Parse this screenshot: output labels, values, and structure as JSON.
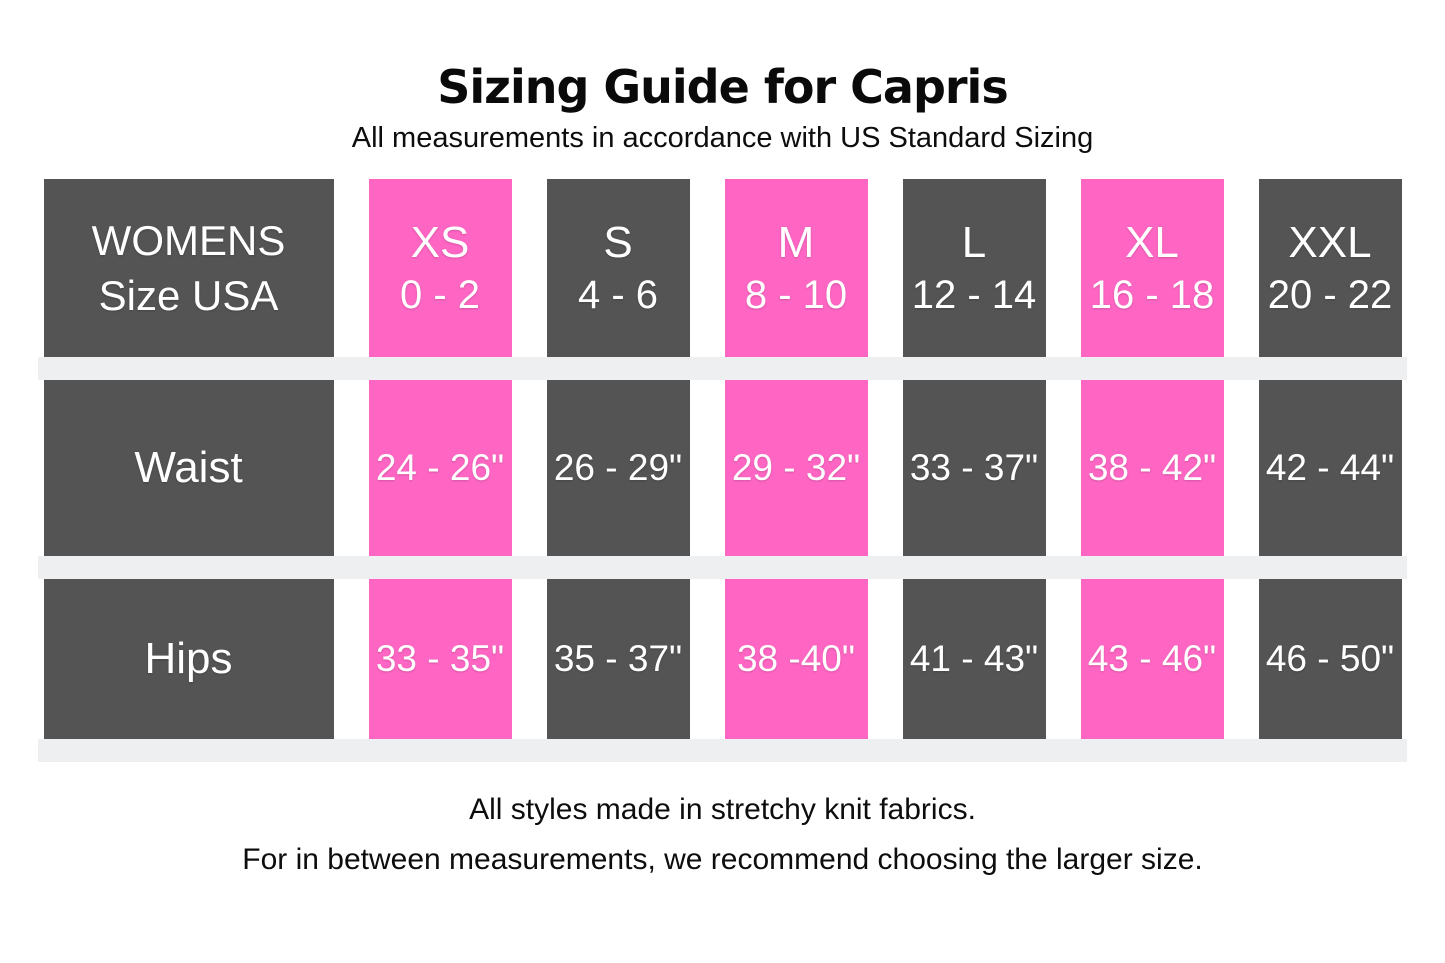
{
  "title": "Sizing Guide for Capris",
  "subtitle": "All measurements in accordance with US Standard Sizing",
  "colors": {
    "highlight_pink": "#ff66c4",
    "dark_gray": "#545454",
    "row_band_gray": "#eeeff1",
    "cell_text": "#ffffff"
  },
  "table": {
    "corner": {
      "line1": "WOMENS",
      "line2": "Size USA"
    },
    "header": {
      "sizes": [
        {
          "name": "XS",
          "range": "0 - 2",
          "highlight": true
        },
        {
          "name": "S",
          "range": "4 - 6",
          "highlight": false
        },
        {
          "name": "M",
          "range": "8 - 10",
          "highlight": true
        },
        {
          "name": "L",
          "range": "12 - 14",
          "highlight": false
        },
        {
          "name": "XL",
          "range": "16 - 18",
          "highlight": true
        },
        {
          "name": "XXL",
          "range": "20 - 22",
          "highlight": false
        }
      ]
    },
    "rows": [
      {
        "label": "Waist",
        "values": [
          "24 - 26\"",
          "26 - 29\"",
          "29 - 32\"",
          "33 - 37\"",
          "38 - 42\"",
          "42 - 44\""
        ]
      },
      {
        "label": "Hips",
        "values": [
          "33 - 35\"",
          "35 - 37\"",
          "38 -40\"",
          "41 - 43\"",
          "43 - 46\"",
          "46 - 50\""
        ]
      }
    ]
  },
  "footer": {
    "line1": "All styles made in stretchy knit fabrics.",
    "line2": "For in between measurements, we recommend choosing the larger size."
  }
}
